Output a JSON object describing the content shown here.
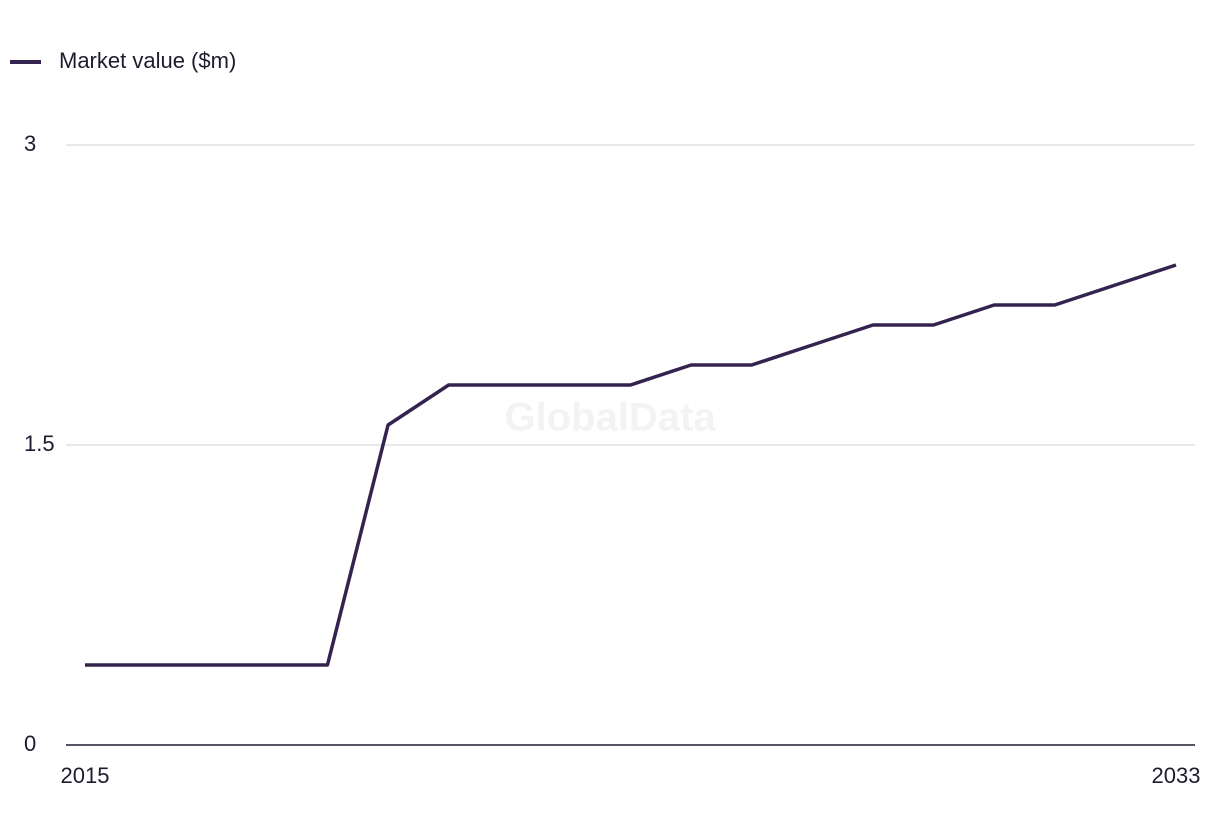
{
  "chart_data": {
    "type": "line",
    "watermark": "GlobalData",
    "x": [
      2015,
      2016,
      2017,
      2018,
      2019,
      2020,
      2021,
      2022,
      2023,
      2024,
      2025,
      2026,
      2027,
      2028,
      2029,
      2030,
      2031,
      2032,
      2033
    ],
    "series": [
      {
        "name": "Market value ($m)",
        "color": "#35234f",
        "values": [
          0.4,
          0.4,
          0.4,
          0.4,
          0.4,
          1.6,
          1.8,
          1.8,
          1.8,
          1.8,
          1.9,
          1.9,
          2.0,
          2.1,
          2.1,
          2.2,
          2.2,
          2.3,
          2.4
        ]
      }
    ],
    "xlim": [
      2015,
      2033
    ],
    "xticks": [
      2015,
      2033
    ],
    "ylim": [
      0,
      3
    ],
    "yticks": [
      0,
      1.5,
      3
    ],
    "grid": true
  }
}
